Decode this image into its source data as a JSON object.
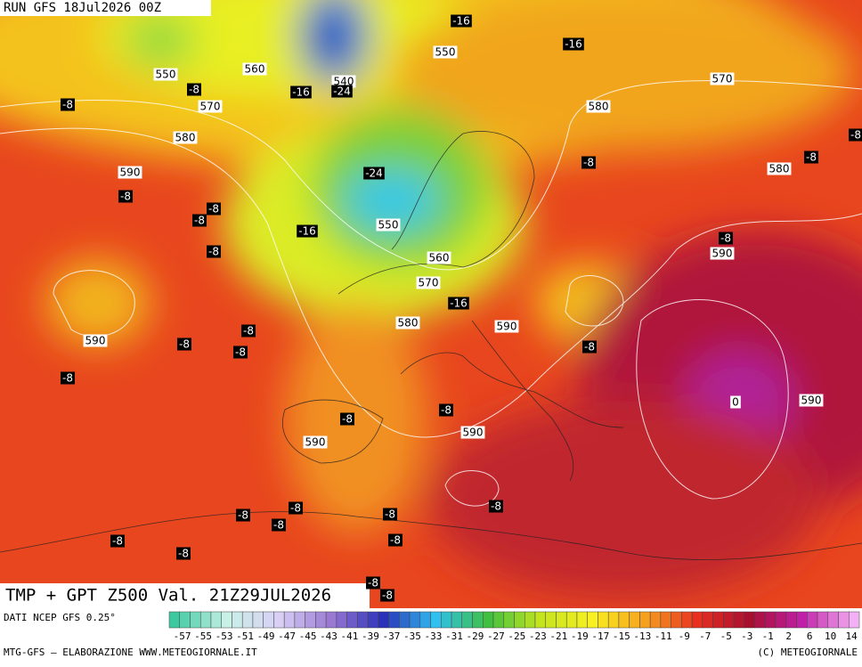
{
  "header": {
    "run": "RUN GFS 18Jul2026 00Z"
  },
  "map": {
    "title": "TMP + GPT Z500 Val. 21Z29JUL2026",
    "contour_labels": [
      "-16",
      "-16",
      "550",
      "560",
      "550",
      "-8",
      "-16",
      "540",
      "-24",
      "570",
      "-8",
      "570",
      "580",
      "580",
      "-8",
      "-8",
      "-8",
      "580",
      "590",
      "-24",
      "-8",
      "-8",
      "-8",
      "550",
      "-16",
      "-8",
      "-8",
      "590",
      "560",
      "570",
      "-16",
      "580",
      "590",
      "-8",
      "590",
      "-8",
      "-8",
      "-8",
      "-8",
      "0",
      "590",
      "-8",
      "-8",
      "590",
      "590",
      "-8",
      "-8",
      "-8",
      "-8",
      "-8",
      "-8",
      "-8",
      "-8",
      "-8",
      "-8"
    ]
  },
  "footer": {
    "source": "DATI NCEP GFS 0.25°",
    "credit": "MTG-GFS — ELABORAZIONE WWW.METEOGIORNALE.IT",
    "copyright": "(C) METEOGIORNALE",
    "scale": [
      -57,
      -55,
      -53,
      -51,
      -49,
      -47,
      -45,
      -43,
      -41,
      -39,
      -37,
      -35,
      -33,
      -31,
      -29,
      -27,
      -25,
      -23,
      -21,
      -19,
      -17,
      -15,
      -13,
      -11,
      -9,
      -7,
      -5,
      -3,
      -1,
      2,
      6,
      10,
      14
    ]
  }
}
